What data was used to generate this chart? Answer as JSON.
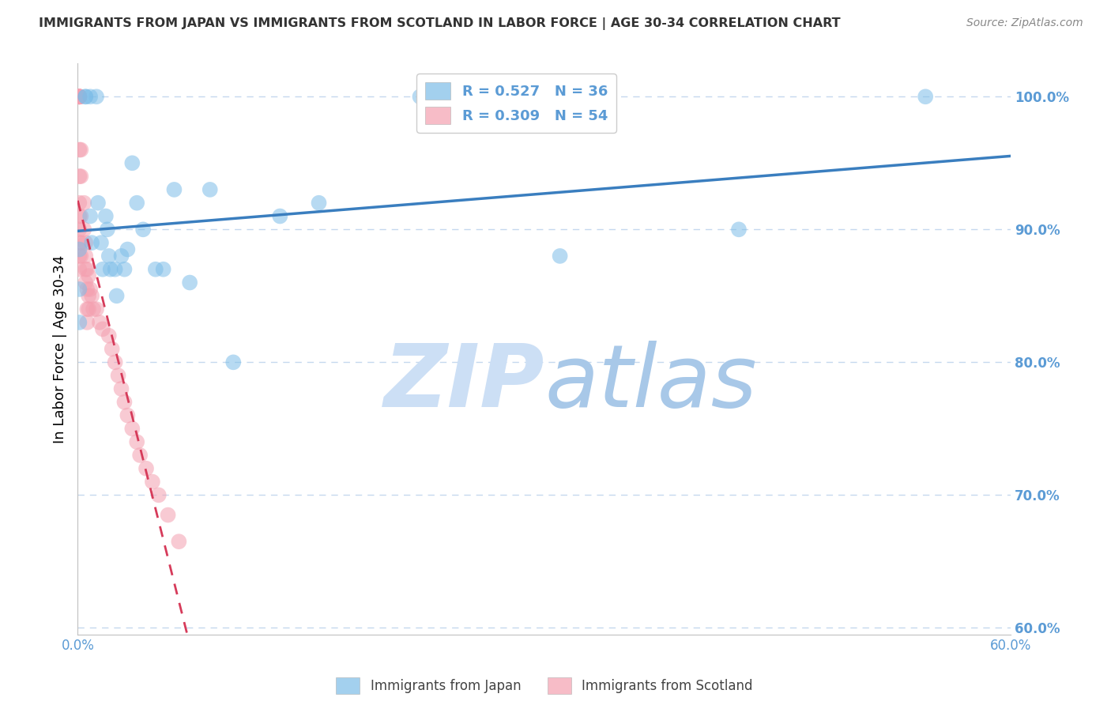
{
  "title": "IMMIGRANTS FROM JAPAN VS IMMIGRANTS FROM SCOTLAND IN LABOR FORCE | AGE 30-34 CORRELATION CHART",
  "source": "Source: ZipAtlas.com",
  "ylabel": "In Labor Force | Age 30-34",
  "xlabel": "",
  "watermark_zip": "ZIP",
  "watermark_atlas": "atlas",
  "legend_japan": "Immigrants from Japan",
  "legend_scotland": "Immigrants from Scotland",
  "R_japan": 0.527,
  "N_japan": 36,
  "R_scotland": 0.309,
  "N_scotland": 54,
  "japan_color": "#7dbde8",
  "scotland_color": "#f4a0b0",
  "japan_line_color": "#3a7ebf",
  "scotland_line_color": "#d63b5a",
  "xmin": 0.0,
  "xmax": 0.6,
  "ymin": 0.595,
  "ymax": 1.025,
  "yticks": [
    0.6,
    0.7,
    0.8,
    0.9,
    1.0
  ],
  "ytick_labels": [
    "60.0%",
    "70.0%",
    "80.0%",
    "90.0%",
    "100.0%"
  ],
  "xticks": [
    0.0,
    0.1,
    0.2,
    0.3,
    0.4,
    0.5,
    0.6
  ],
  "xtick_labels": [
    "0.0%",
    "",
    "",
    "",
    "",
    "",
    "60.0%"
  ],
  "japan_x": [
    0.001,
    0.001,
    0.001,
    0.005,
    0.005,
    0.008,
    0.008,
    0.009,
    0.012,
    0.013,
    0.015,
    0.016,
    0.018,
    0.019,
    0.02,
    0.021,
    0.024,
    0.025,
    0.028,
    0.03,
    0.032,
    0.035,
    0.038,
    0.042,
    0.05,
    0.055,
    0.062,
    0.072,
    0.085,
    0.1,
    0.13,
    0.155,
    0.22,
    0.31,
    0.425,
    0.545
  ],
  "japan_y": [
    0.885,
    0.855,
    0.83,
    1.0,
    1.0,
    1.0,
    0.91,
    0.89,
    1.0,
    0.92,
    0.89,
    0.87,
    0.91,
    0.9,
    0.88,
    0.87,
    0.87,
    0.85,
    0.88,
    0.87,
    0.885,
    0.95,
    0.92,
    0.9,
    0.87,
    0.87,
    0.93,
    0.86,
    0.93,
    0.8,
    0.91,
    0.92,
    1.0,
    0.88,
    0.9,
    1.0
  ],
  "scotland_x": [
    0.001,
    0.001,
    0.001,
    0.001,
    0.001,
    0.001,
    0.001,
    0.001,
    0.001,
    0.001,
    0.001,
    0.001,
    0.001,
    0.001,
    0.001,
    0.002,
    0.002,
    0.002,
    0.002,
    0.002,
    0.004,
    0.004,
    0.005,
    0.005,
    0.005,
    0.005,
    0.006,
    0.006,
    0.006,
    0.006,
    0.007,
    0.007,
    0.007,
    0.008,
    0.009,
    0.01,
    0.012,
    0.014,
    0.016,
    0.02,
    0.022,
    0.024,
    0.026,
    0.028,
    0.03,
    0.032,
    0.035,
    0.038,
    0.04,
    0.044,
    0.048,
    0.052,
    0.058,
    0.065
  ],
  "scotland_y": [
    1.0,
    1.0,
    1.0,
    1.0,
    1.0,
    1.0,
    1.0,
    0.96,
    0.94,
    0.92,
    0.91,
    0.9,
    0.89,
    0.88,
    0.87,
    0.96,
    0.94,
    0.91,
    0.89,
    0.88,
    0.92,
    0.9,
    0.89,
    0.88,
    0.87,
    0.86,
    0.87,
    0.855,
    0.84,
    0.83,
    0.865,
    0.85,
    0.84,
    0.855,
    0.85,
    0.84,
    0.84,
    0.83,
    0.825,
    0.82,
    0.81,
    0.8,
    0.79,
    0.78,
    0.77,
    0.76,
    0.75,
    0.74,
    0.73,
    0.72,
    0.71,
    0.7,
    0.685,
    0.665
  ],
  "title_color": "#333333",
  "axis_tick_color": "#5b9bd5",
  "grid_color": "#c5d8ee",
  "watermark_zip_color": "#ccdff5",
  "watermark_atlas_color": "#a8c8e8",
  "spine_color": "#c0c0c0"
}
